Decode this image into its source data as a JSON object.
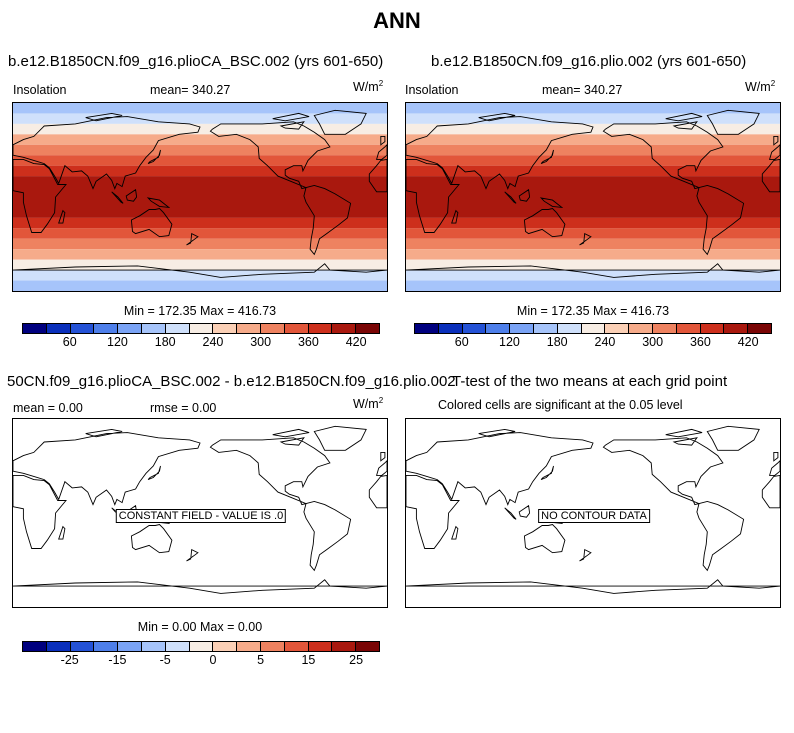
{
  "title": "ANN",
  "panels": {
    "p1": {
      "title": "b.e12.B1850CN.f09_g16.plioCA_BSC.002 (yrs 601-650)",
      "var_label": "Insolation",
      "mean_text": "mean= 340.27",
      "units_base": "W/m",
      "units_exp": "2",
      "minmax_text": "Min = 172.35 Max = 416.73"
    },
    "p2": {
      "title": "b.e12.B1850CN.f09_g16.plio.002 (yrs 601-650)",
      "var_label": "Insolation",
      "mean_text": "mean= 340.27",
      "units_base": "W/m",
      "units_exp": "2",
      "minmax_text": "Min = 172.35 Max = 416.73"
    },
    "p3": {
      "title": "50CN.f09_g16.plioCA_BSC.002 - b.e12.B1850CN.f09_g16.plio.002",
      "mean_text": "mean =    0.00",
      "rmse_text": "rmse =    0.00",
      "units_base": "W/m",
      "units_exp": "2",
      "center_label": "CONSTANT FIELD - VALUE IS .0",
      "minmax_text": "Min =    0.00 Max =    0.00"
    },
    "p4": {
      "title": "T-test of the two means at each grid point",
      "subtitle": "Colored cells are significant at the 0.05 level",
      "center_label": "NO CONTOUR DATA"
    }
  },
  "colorbar_colors": [
    "#00007f",
    "#0a2fbb",
    "#2452d6",
    "#4e7fea",
    "#7aa3f5",
    "#a6c4fa",
    "#cfe0fb",
    "#f7ede4",
    "#fbd0b6",
    "#f6ab8a",
    "#ee8260",
    "#e2563a",
    "#cd2f1c",
    "#a9180e",
    "#7a0505"
  ],
  "colorbar1": {
    "ticks": [
      "60",
      "120",
      "180",
      "240",
      "300",
      "360",
      "420"
    ]
  },
  "colorbar2": {
    "ticks": [
      "60",
      "120",
      "180",
      "240",
      "300",
      "360",
      "420"
    ]
  },
  "colorbar3": {
    "ticks": [
      "-25",
      "-15",
      "-5",
      "0",
      "5",
      "15",
      "25"
    ]
  },
  "chart_data": {
    "type": "heatmap",
    "variable": "Insolation",
    "units": "W/m2",
    "season": "ANN",
    "fields": [
      {
        "case": "b.e12.B1850CN.f09_g16.plioCA_BSC.002 (yrs 601-650)",
        "mean": 340.27,
        "min": 172.35,
        "max": 416.73
      },
      {
        "case": "b.e12.B1850CN.f09_g16.plio.002 (yrs 601-650)",
        "mean": 340.27,
        "min": 172.35,
        "max": 416.73
      },
      {
        "case": "difference",
        "mean": 0.0,
        "rmse": 0.0,
        "min": 0.0,
        "max": 0.0
      },
      {
        "case": "T-test",
        "note": "NO CONTOUR DATA"
      }
    ],
    "lat_bands": [
      {
        "lat_range": [
          80,
          90
        ],
        "value": 175
      },
      {
        "lat_range": [
          70,
          80
        ],
        "value": 200
      },
      {
        "lat_range": [
          60,
          70
        ],
        "value": 230
      },
      {
        "lat_range": [
          50,
          60
        ],
        "value": 270
      },
      {
        "lat_range": [
          40,
          50
        ],
        "value": 300
      },
      {
        "lat_range": [
          30,
          40
        ],
        "value": 340
      },
      {
        "lat_range": [
          20,
          30
        ],
        "value": 375
      },
      {
        "lat_range": [
          -20,
          20
        ],
        "value": 410
      },
      {
        "lat_range": [
          -30,
          -20
        ],
        "value": 375
      },
      {
        "lat_range": [
          -40,
          -30
        ],
        "value": 340
      },
      {
        "lat_range": [
          -50,
          -40
        ],
        "value": 300
      },
      {
        "lat_range": [
          -60,
          -50
        ],
        "value": 270
      },
      {
        "lat_range": [
          -70,
          -60
        ],
        "value": 230
      },
      {
        "lat_range": [
          -80,
          -70
        ],
        "value": 200
      },
      {
        "lat_range": [
          -90,
          -80
        ],
        "value": 175
      }
    ]
  }
}
